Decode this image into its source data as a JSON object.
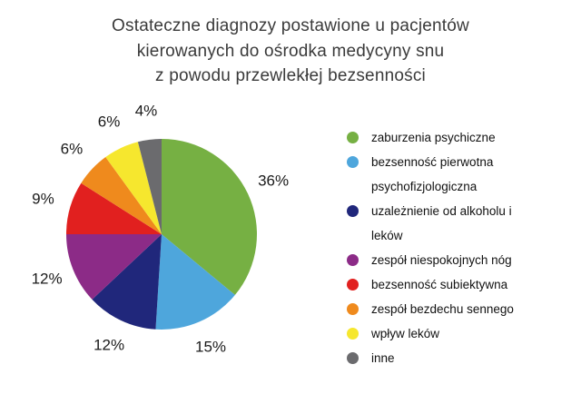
{
  "title": {
    "lines": [
      "Ostateczne diagnozy postawione u pacjentów",
      "kierowanych do ośrodka medycyny snu",
      "z powodu przewlekłej bezsenności"
    ]
  },
  "chart_data": {
    "type": "pie",
    "title": "Ostateczne diagnozy postawione u pacjentów kierowanych do ośrodka medycyny snu z powodu przewlekłej bezsenności",
    "labels": [
      "zaburzenia psychiczne",
      "bezsenność pierwotna psychofizjologiczna",
      "uzależnienie od alkoholu i leków",
      "zespół niespokojnych nóg",
      "bezsenność subiektywna",
      "zespół bezdechu sennego",
      "wpływ leków",
      "inne"
    ],
    "values": [
      36,
      15,
      12,
      12,
      9,
      6,
      6,
      4
    ],
    "unit": "%",
    "percent_labels": [
      "36%",
      "15%",
      "12%",
      "12%",
      "9%",
      "6%",
      "6%",
      "4%"
    ],
    "colors": [
      "#76b043",
      "#4ea6dc",
      "#20277b",
      "#8c2b87",
      "#e1201f",
      "#ef8a1d",
      "#f6e72e",
      "#6b6b6e"
    ],
    "start_angle_deg": 0,
    "direction": "clockwise",
    "legend_position": "right",
    "grid": false
  }
}
